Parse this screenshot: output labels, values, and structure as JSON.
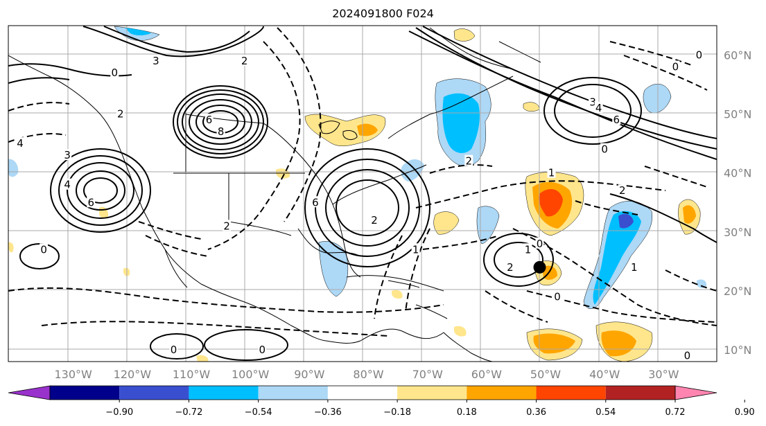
{
  "title": "2024091800 F024",
  "map": {
    "lon_ticks": [
      {
        "label": "130°W",
        "lon": -130
      },
      {
        "label": "120°W",
        "lon": -120
      },
      {
        "label": "110°W",
        "lon": -110
      },
      {
        "label": "100°W",
        "lon": -100
      },
      {
        "label": "90°W",
        "lon": -90
      },
      {
        "label": "80°W",
        "lon": -80
      },
      {
        "label": "70°W",
        "lon": -70
      },
      {
        "label": "60°W",
        "lon": -60
      },
      {
        "label": "50°W",
        "lon": -50
      },
      {
        "label": "40°W",
        "lon": -40
      },
      {
        "label": "30°W",
        "lon": -30
      }
    ],
    "lat_ticks": [
      {
        "label": "60°N",
        "lat": 60
      },
      {
        "label": "50°N",
        "lat": 50
      },
      {
        "label": "40°N",
        "lat": 40
      },
      {
        "label": "30°N",
        "lat": 30
      },
      {
        "label": "20°N",
        "lat": 20
      },
      {
        "label": "10°N",
        "lat": 10
      }
    ],
    "extent": {
      "lon_min": -141,
      "lon_max": -21,
      "lat_min": 8,
      "lat_max": 65
    },
    "contour_labels": [
      {
        "text": "0",
        "lon": -123,
        "lat": 57
      },
      {
        "text": "3",
        "lon": -116,
        "lat": 59
      },
      {
        "text": "2",
        "lon": -101,
        "lat": 59
      },
      {
        "text": "6",
        "lon": -107,
        "lat": 49
      },
      {
        "text": "8",
        "lon": -105,
        "lat": 47
      },
      {
        "text": "4",
        "lon": -131,
        "lat": 38
      },
      {
        "text": "6",
        "lon": -127,
        "lat": 35
      },
      {
        "text": "2",
        "lon": -104,
        "lat": 31
      },
      {
        "text": "6",
        "lon": -89,
        "lat": 35
      },
      {
        "text": "2",
        "lon": -79,
        "lat": 32
      },
      {
        "text": "1",
        "lon": -72,
        "lat": 27
      },
      {
        "text": "0",
        "lon": -135,
        "lat": 27
      },
      {
        "text": "0",
        "lon": -113,
        "lat": 10
      },
      {
        "text": "0",
        "lon": -98,
        "lat": 10
      },
      {
        "text": "1",
        "lon": -53,
        "lat": 27
      },
      {
        "text": "0",
        "lon": -51,
        "lat": 28
      },
      {
        "text": "2",
        "lon": -56,
        "lat": 24
      },
      {
        "text": "3",
        "lon": -42,
        "lat": 52
      },
      {
        "text": "4",
        "lon": -41,
        "lat": 51
      },
      {
        "text": "6",
        "lon": -38,
        "lat": 49
      },
      {
        "text": "0",
        "lon": -40,
        "lat": 44
      },
      {
        "text": "0",
        "lon": -28,
        "lat": 58
      },
      {
        "text": "0",
        "lon": -24,
        "lat": 60
      },
      {
        "text": "2",
        "lon": -63,
        "lat": 42
      },
      {
        "text": "1",
        "lon": -49,
        "lat": 40
      },
      {
        "text": "2",
        "lon": -37,
        "lat": 37
      },
      {
        "text": "1",
        "lon": -35,
        "lat": 24
      },
      {
        "text": "0",
        "lon": -48,
        "lat": 19
      },
      {
        "text": "0",
        "lon": -26,
        "lat": 9
      },
      {
        "text": "2",
        "lon": -122,
        "lat": 50
      },
      {
        "text": "3",
        "lon": -131,
        "lat": 43
      },
      {
        "text": "4",
        "lon": -139,
        "lat": 45
      }
    ],
    "marker": {
      "lon": -51,
      "lat": 24,
      "color": "#000000"
    },
    "land_color": "#ffffff",
    "ocean_color": "#ffffff",
    "grid_color": "#a9a9a9"
  },
  "colorbar": {
    "ticks": [
      "−0.90",
      "−0.72",
      "−0.54",
      "−0.36",
      "−0.18",
      "0.18",
      "0.36",
      "0.54",
      "0.72",
      "0.90"
    ],
    "colors": [
      "#9932cc",
      "#00008b",
      "#3a4fd0",
      "#00bfff",
      "#add8f6",
      "#ffffff",
      "#ffe68c",
      "#ffa500",
      "#ff4500",
      "#b22222",
      "#ff85b0"
    ]
  }
}
